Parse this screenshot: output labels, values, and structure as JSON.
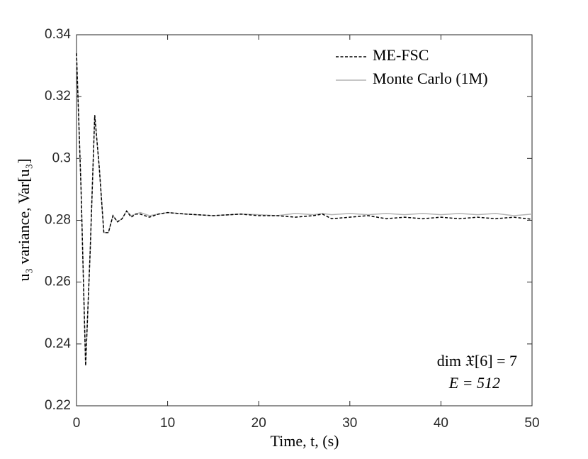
{
  "chart_data": {
    "type": "line",
    "x_label": "Time, t, (s)",
    "y_label": "u₃ variance, Var[u₃]",
    "x": [
      0,
      0.5,
      1,
      1.5,
      2,
      2.5,
      3,
      3.5,
      4,
      4.5,
      5,
      5.5,
      6,
      6.5,
      7,
      8,
      9,
      10,
      12,
      15,
      18,
      20,
      22,
      24,
      26,
      27,
      28,
      30,
      32,
      34,
      36,
      38,
      40,
      42,
      44,
      46,
      48,
      50
    ],
    "series": [
      {
        "name": "Monte Carlo (1M)",
        "color": "#b4b4b4",
        "dash": false,
        "values": [
          0.334,
          0.29,
          0.233,
          0.27,
          0.314,
          0.297,
          0.276,
          0.276,
          0.2815,
          0.2795,
          0.2805,
          0.283,
          0.2815,
          0.282,
          0.2825,
          0.2815,
          0.282,
          0.2825,
          0.282,
          0.2815,
          0.282,
          0.2818,
          0.2815,
          0.2822,
          0.2818,
          0.2822,
          0.2818,
          0.2822,
          0.2818,
          0.2822,
          0.2818,
          0.2822,
          0.2818,
          0.2822,
          0.2818,
          0.2822,
          0.2815,
          0.282
        ]
      },
      {
        "name": "ME-FSC",
        "color": "#000000",
        "dash": true,
        "values": [
          0.334,
          0.29,
          0.233,
          0.27,
          0.314,
          0.297,
          0.276,
          0.276,
          0.2815,
          0.2795,
          0.2805,
          0.283,
          0.281,
          0.282,
          0.282,
          0.281,
          0.282,
          0.2825,
          0.282,
          0.2815,
          0.282,
          0.2815,
          0.2815,
          0.281,
          0.2815,
          0.282,
          0.2805,
          0.281,
          0.2815,
          0.2805,
          0.281,
          0.2805,
          0.281,
          0.2805,
          0.281,
          0.2805,
          0.281,
          0.2803
        ]
      }
    ],
    "xlim": [
      0,
      50
    ],
    "xticks": [
      0,
      10,
      20,
      30,
      40,
      50
    ],
    "ylim": [
      0.22,
      0.34
    ],
    "yticks": [
      0.22,
      0.24,
      0.26,
      0.28,
      0.3,
      0.32,
      0.34
    ],
    "annotations": [
      "dim 𝔛[6] = 7",
      "E = 512"
    ]
  }
}
